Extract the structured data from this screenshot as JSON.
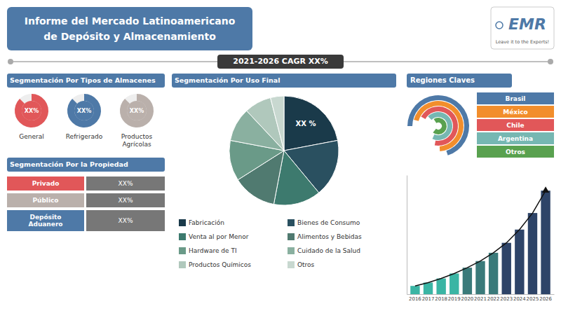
{
  "chart_data": [
    {
      "type": "panel",
      "title": "Informe del Mercado Latinoamericano",
      "subtitle": "de Depósito y Almacenamiento",
      "annotations": [
        "Segmentación Por Tipos de Almacenes",
        "General",
        "Refrigerado",
        "Productos\nAgrícolas",
        "XX%",
        "Segmentación Por la Propiedad",
        "Privado",
        "Público",
        "Depósito\nAduanero",
        "2021-2026 CAGR XX%",
        "Regiones Claves",
        "Brasil",
        "México",
        "Chile",
        "Argentina",
        "Otros",
        "EMR",
        "Leave it to the Experts!"
      ]
    },
    {
      "type": "pie",
      "title": "Segmentación Por Uso Final",
      "categories": [
        "Fabricación",
        "Bienes de Consumo",
        "Venta al por Menor",
        "Alimentos y Bebidas",
        "Hardware de TI",
        "Cuidado de la Salud",
        "Productos Químicos",
        "Otros"
      ],
      "values": [
        22,
        17,
        14,
        13,
        12,
        10,
        8,
        4
      ],
      "colors": [
        "#1a3a4a",
        "#2a5060",
        "#3d7a6e",
        "#507a70",
        "#6a9a88",
        "#8ab0a0",
        "#b0c8bc",
        "#c8d8d0"
      ],
      "legend": "bottom",
      "annotations": [
        "XX %"
      ]
    },
    {
      "type": "bar",
      "categories": [
        "2016",
        "2017",
        "2018",
        "2019",
        "2020",
        "2021",
        "2022",
        "2023",
        "2024",
        "2025",
        "2026"
      ],
      "series": [
        {
          "type": "bar",
          "colors": [
            "#3ab5a4",
            "#3ab5a4",
            "#3ab5a4",
            "#3ab5a4",
            "#3a7a7a",
            "#3a7a7a",
            "#3a7a7a",
            "#2e4468",
            "#2e4468",
            "#2e4468",
            "#2e4468"
          ],
          "values": [
            1.0,
            1.4,
            1.9,
            2.5,
            3.2,
            4.0,
            5.0,
            6.2,
            7.8,
            9.8,
            12.5
          ]
        },
        {
          "type": "line",
          "color": "#111111",
          "marker": "triangle",
          "values": [
            1.0,
            1.4,
            1.9,
            2.5,
            3.2,
            4.0,
            5.0,
            6.2,
            7.8,
            9.8,
            12.5
          ]
        }
      ],
      "ylim": [
        0,
        14.375
      ],
      "tick_labels": "x"
    }
  ]
}
